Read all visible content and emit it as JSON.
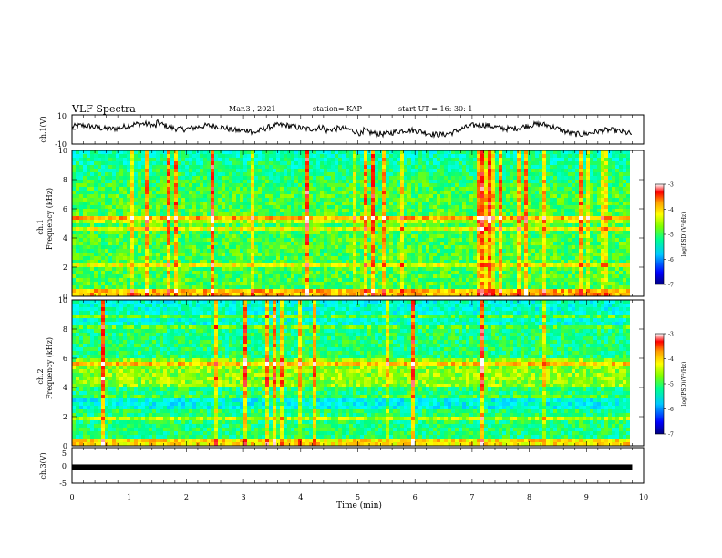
{
  "header": {
    "title": "VLF Spectra",
    "date": "Mar.3  , 2021",
    "station": "station= KAP",
    "start": "start  UT =   16: 30: 1"
  },
  "colors": {
    "colormap": [
      "#000080",
      "#0000ff",
      "#00a0ff",
      "#00ffff",
      "#00ff80",
      "#80ff00",
      "#ffff00",
      "#ffa000",
      "#ff0000",
      "#ffffff"
    ]
  },
  "chart_data": [
    {
      "id": "ch1-waveform",
      "type": "line",
      "ylabel": "ch.1(V)",
      "yticks": [
        "10",
        "-10"
      ],
      "ylim": [
        -10,
        10
      ],
      "xlim": [
        0,
        10
      ],
      "series": [
        {
          "values_note": "",
          "description": ""
        }
      ]
    },
    {
      "id": "ch1-spectrogram",
      "type": "heatmap",
      "ylabel": "Frequency  (kHz)",
      "panel_label": "ch.1",
      "ylim": [
        0,
        10
      ],
      "yticks": [
        "0",
        "2",
        "4",
        "6",
        "8",
        "10"
      ],
      "xlim": [
        0,
        9.8
      ],
      "colorbar": {
        "min": -7,
        "max": -3,
        "ticks": [
          "-3",
          "-4",
          "-5",
          "-6",
          "-7"
        ],
        "label": "log(PSD)(V²/Hz)"
      }
    },
    {
      "id": "ch2-spectrogram",
      "type": "heatmap",
      "ylabel": "Frequency  (kHz)",
      "panel_label": "ch.2",
      "ylim": [
        0,
        10
      ],
      "yticks": [
        "0",
        "2",
        "4",
        "6",
        "8",
        "10"
      ],
      "xlim": [
        0,
        9.8
      ],
      "colorbar": {
        "min": -7,
        "max": -3,
        "ticks": [
          "-3",
          "-4",
          "-5",
          "-6",
          "-7"
        ],
        "label": "log(PSD)(V²/Hz)"
      }
    },
    {
      "id": "ch3-waveform",
      "type": "line",
      "ylabel": "ch.3(V)",
      "yticks": [
        "5",
        "0",
        "-5"
      ],
      "ylim": [
        -5,
        5
      ],
      "xlim": [
        0,
        10
      ],
      "xlabel": "Time  (min)",
      "xticks": [
        "0",
        "1",
        "2",
        "3",
        "4",
        "5",
        "6",
        "7",
        "8",
        "9",
        "10"
      ],
      "series": [
        {
          "constant_value": -0.5,
          "xrange": [
            0,
            9.8
          ]
        }
      ]
    }
  ]
}
